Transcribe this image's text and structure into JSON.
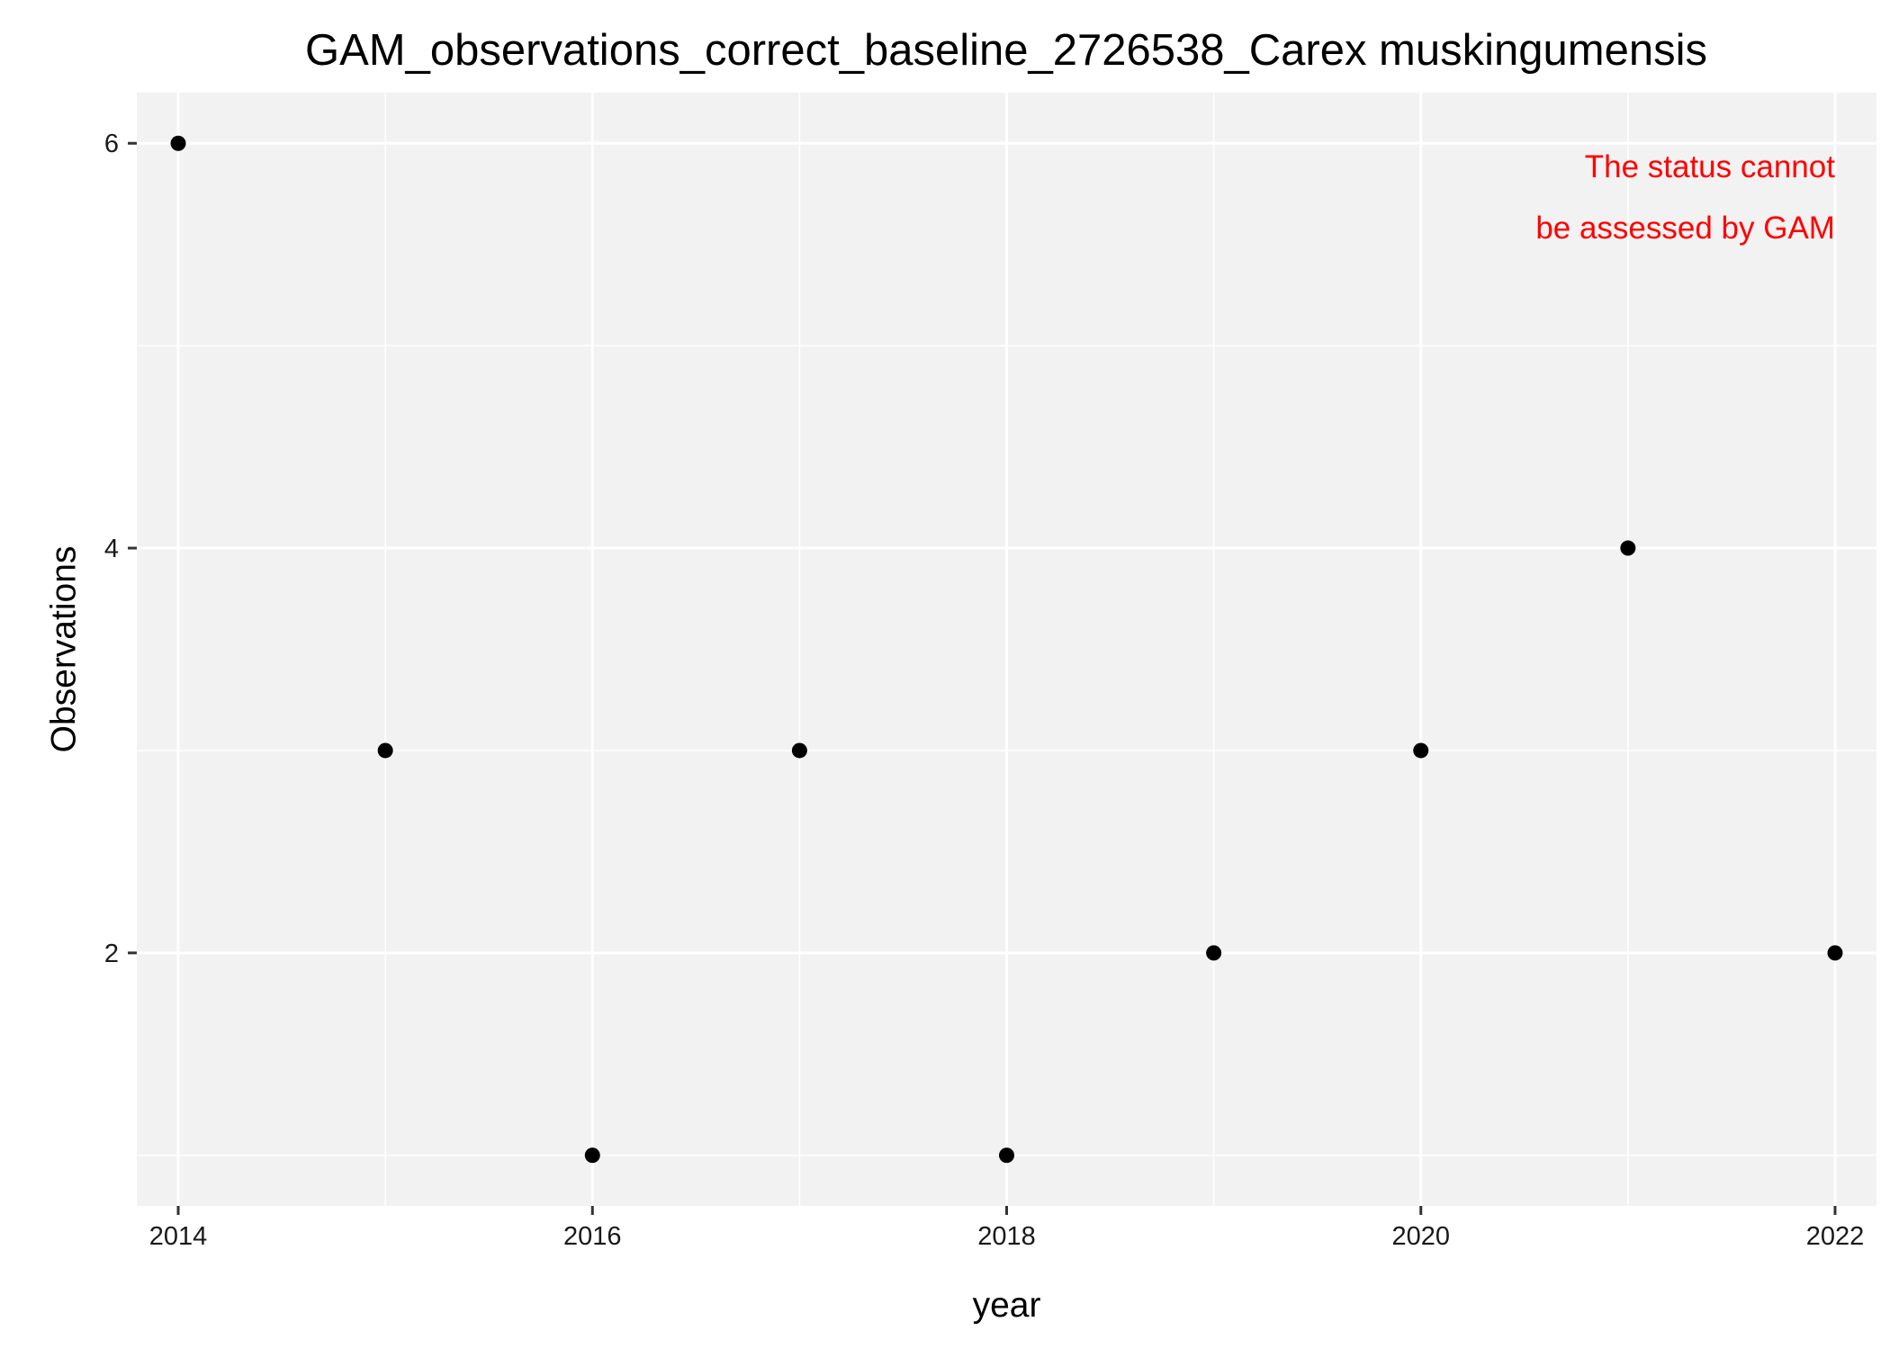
{
  "chart_data": {
    "type": "scatter",
    "title": "GAM_observations_correct_baseline_2726538_Carex muskingumensis",
    "xlabel": "year",
    "ylabel": "Observations",
    "x": [
      2014,
      2015,
      2016,
      2017,
      2018,
      2019,
      2020,
      2021,
      2022
    ],
    "y": [
      6,
      3,
      1,
      3,
      1,
      2,
      3,
      4,
      2
    ],
    "xlim": [
      2013.8,
      2022.2
    ],
    "ylim": [
      0.75,
      6.25
    ],
    "x_major_ticks": [
      2014,
      2016,
      2018,
      2020,
      2022
    ],
    "x_tick_labels": [
      "2014",
      "2016",
      "2018",
      "2020",
      "2022"
    ],
    "x_minor_gridlines": [
      2015,
      2017,
      2019,
      2021
    ],
    "y_major_ticks": [
      2,
      4,
      6
    ],
    "y_tick_labels": [
      "2",
      "4",
      "6"
    ],
    "y_minor_gridlines": [
      1,
      3,
      5
    ],
    "grid": true,
    "point_color": "#000000",
    "panel_background": "#f2f2f2",
    "annotation": {
      "lines": [
        "The status cannot",
        "be assessed by GAM"
      ],
      "color": "#ff0000",
      "anchor_x": 2022,
      "anchor_y": 6,
      "align": "right"
    }
  }
}
